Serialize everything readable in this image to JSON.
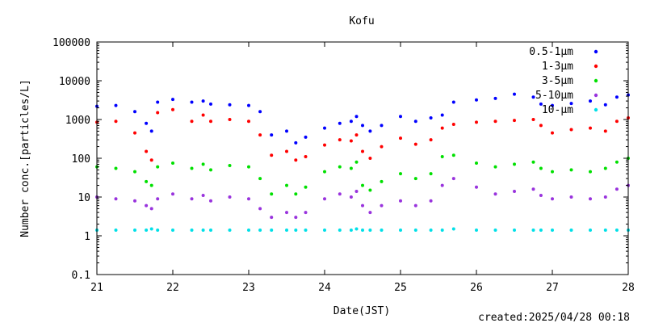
{
  "chart_data": {
    "type": "scatter",
    "title": "Kofu",
    "xlabel": "Date(JST)",
    "ylabel": "Number conc.[particles/L]",
    "x_scale": "linear",
    "y_scale": "log",
    "xlim": [
      21,
      28
    ],
    "ylim": [
      0.1,
      100000
    ],
    "x_ticks": [
      21,
      22,
      23,
      24,
      25,
      26,
      27,
      28
    ],
    "y_ticks": [
      0.1,
      1,
      10,
      100,
      1000,
      10000,
      100000
    ],
    "y_tick_labels": [
      "0.1",
      "1",
      "10",
      "100",
      "1000",
      "10000",
      "100000"
    ],
    "grid": false,
    "legend_position": "top-right",
    "series": [
      {
        "name": "0.5-1μm",
        "color": "#0000ff",
        "x": [
          21.0,
          21.25,
          21.5,
          21.65,
          21.72,
          21.8,
          22.0,
          22.25,
          22.4,
          22.5,
          22.75,
          23.0,
          23.15,
          23.3,
          23.5,
          23.62,
          23.75,
          24.0,
          24.2,
          24.35,
          24.42,
          24.5,
          24.6,
          24.75,
          25.0,
          25.2,
          25.4,
          25.55,
          25.7,
          26.0,
          26.25,
          26.5,
          26.75,
          26.85,
          27.0,
          27.25,
          27.5,
          27.7,
          27.85,
          28.0
        ],
        "y": [
          2200,
          2300,
          1600,
          800,
          500,
          2800,
          3300,
          2800,
          3000,
          2500,
          2400,
          2300,
          1600,
          400,
          500,
          250,
          350,
          600,
          800,
          900,
          1200,
          700,
          500,
          700,
          1200,
          900,
          1100,
          1300,
          2800,
          3200,
          3500,
          4500,
          3800,
          2500,
          2300,
          2600,
          3000,
          2400,
          3800,
          4300
        ]
      },
      {
        "name": "1-3μm",
        "color": "#ff0000",
        "x": [
          21.0,
          21.25,
          21.5,
          21.65,
          21.72,
          21.8,
          22.0,
          22.25,
          22.4,
          22.5,
          22.75,
          23.0,
          23.15,
          23.3,
          23.5,
          23.62,
          23.75,
          24.0,
          24.2,
          24.35,
          24.42,
          24.5,
          24.6,
          24.75,
          25.0,
          25.2,
          25.4,
          25.55,
          25.7,
          26.0,
          26.25,
          26.5,
          26.75,
          26.85,
          27.0,
          27.25,
          27.5,
          27.7,
          27.85,
          28.0
        ],
        "y": [
          850,
          900,
          450,
          150,
          90,
          1500,
          1800,
          900,
          1300,
          900,
          1000,
          900,
          400,
          120,
          150,
          90,
          110,
          220,
          300,
          280,
          400,
          150,
          100,
          200,
          330,
          230,
          300,
          600,
          750,
          850,
          900,
          950,
          1000,
          700,
          450,
          550,
          600,
          500,
          900,
          1100
        ]
      },
      {
        "name": "3-5μm",
        "color": "#00e000",
        "x": [
          21.0,
          21.25,
          21.5,
          21.65,
          21.72,
          21.8,
          22.0,
          22.25,
          22.4,
          22.5,
          22.75,
          23.0,
          23.15,
          23.3,
          23.5,
          23.62,
          23.75,
          24.0,
          24.2,
          24.35,
          24.42,
          24.5,
          24.6,
          24.75,
          25.0,
          25.2,
          25.4,
          25.55,
          25.7,
          26.0,
          26.25,
          26.5,
          26.75,
          26.85,
          27.0,
          27.25,
          27.5,
          27.7,
          27.85,
          28.0
        ],
        "y": [
          60,
          55,
          45,
          25,
          20,
          60,
          75,
          55,
          70,
          50,
          65,
          60,
          30,
          12,
          20,
          12,
          18,
          45,
          60,
          55,
          80,
          20,
          15,
          25,
          40,
          30,
          40,
          110,
          120,
          75,
          60,
          70,
          80,
          55,
          45,
          50,
          45,
          55,
          80,
          100
        ]
      },
      {
        "name": "5-10μm",
        "color": "#9933dd",
        "x": [
          21.0,
          21.25,
          21.5,
          21.65,
          21.72,
          21.8,
          22.0,
          22.25,
          22.4,
          22.5,
          22.75,
          23.0,
          23.15,
          23.3,
          23.5,
          23.62,
          23.75,
          24.0,
          24.2,
          24.35,
          24.42,
          24.5,
          24.6,
          24.75,
          25.0,
          25.2,
          25.4,
          25.55,
          25.7,
          26.0,
          26.25,
          26.5,
          26.75,
          26.85,
          27.0,
          27.25,
          27.5,
          27.7,
          27.85,
          28.0
        ],
        "y": [
          10,
          9,
          8,
          6,
          5,
          9,
          12,
          9,
          11,
          8,
          10,
          9,
          5,
          3,
          4,
          3,
          4,
          9,
          12,
          10,
          14,
          6,
          4,
          6,
          8,
          6,
          8,
          20,
          30,
          18,
          12,
          14,
          16,
          11,
          9,
          10,
          9,
          10,
          16,
          20
        ]
      },
      {
        "name": "10-μm",
        "color": "#00e0e8",
        "x": [
          21.0,
          21.25,
          21.5,
          21.65,
          21.72,
          21.8,
          22.0,
          22.25,
          22.4,
          22.5,
          22.75,
          23.0,
          23.15,
          23.3,
          23.5,
          23.62,
          23.75,
          24.0,
          24.2,
          24.35,
          24.42,
          24.5,
          24.6,
          24.75,
          25.0,
          25.2,
          25.4,
          25.55,
          25.7,
          26.0,
          26.25,
          26.5,
          26.75,
          26.85,
          27.0,
          27.25,
          27.5,
          27.7,
          27.85,
          28.0
        ],
        "y": [
          1.4,
          1.4,
          1.4,
          1.4,
          1.5,
          1.4,
          1.4,
          1.4,
          1.4,
          1.4,
          1.4,
          1.4,
          1.4,
          1.4,
          1.4,
          1.4,
          1.4,
          1.4,
          1.4,
          1.4,
          1.5,
          1.4,
          1.4,
          1.4,
          1.4,
          1.4,
          1.4,
          1.4,
          1.5,
          1.4,
          1.4,
          1.4,
          1.4,
          1.4,
          1.4,
          1.4,
          1.4,
          1.4,
          1.4,
          1.4
        ]
      }
    ]
  },
  "footer": {
    "created": "created:2025/04/28 00:18"
  }
}
